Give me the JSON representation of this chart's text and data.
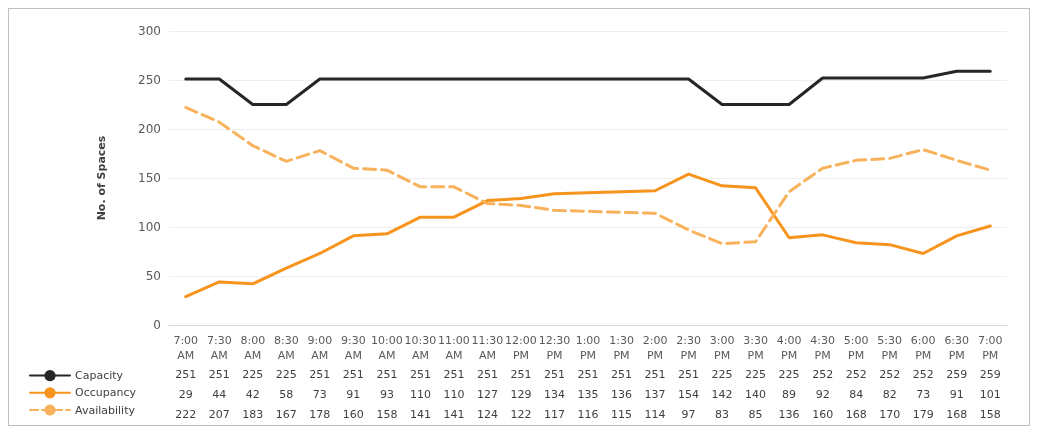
{
  "chart_data": {
    "type": "line",
    "ylabel": "No. of Spaces",
    "categories": [
      "7:00 AM",
      "7:30 AM",
      "8:00 AM",
      "8:30 AM",
      "9:00 AM",
      "9:30 AM",
      "10:00 AM",
      "10:30 AM",
      "11:00 AM",
      "11:30 AM",
      "12:00 PM",
      "12:30 PM",
      "1:00 PM",
      "1:30 PM",
      "2:00 PM",
      "2:30 PM",
      "3:00 PM",
      "3:30 PM",
      "4:00 PM",
      "4:30 PM",
      "5:00 PM",
      "5:30 PM",
      "6:00 PM",
      "6:30 PM",
      "7:00 PM"
    ],
    "series": [
      {
        "name": "Capacity",
        "color": "#262626",
        "line_style": "solid",
        "values": [
          251,
          251,
          225,
          225,
          251,
          251,
          251,
          251,
          251,
          251,
          251,
          251,
          251,
          251,
          251,
          251,
          225,
          225,
          225,
          252,
          252,
          252,
          252,
          259,
          259
        ]
      },
      {
        "name": "Occupancy",
        "color": "#f7941d",
        "line_style": "solid",
        "values": [
          29,
          44,
          42,
          58,
          73,
          91,
          93,
          110,
          110,
          127,
          129,
          134,
          135,
          136,
          137,
          154,
          142,
          140,
          89,
          92,
          84,
          82,
          73,
          91,
          101
        ]
      },
      {
        "name": "Availability",
        "color": "#f9b25c",
        "line_style": "dashed",
        "values": [
          222,
          207,
          183,
          167,
          178,
          160,
          158,
          141,
          141,
          124,
          122,
          117,
          116,
          115,
          114,
          97,
          83,
          85,
          136,
          160,
          168,
          170,
          179,
          168,
          158
        ]
      }
    ],
    "ylim": [
      0,
      300
    ],
    "yticks": [
      0,
      50,
      100,
      150,
      200,
      250,
      300
    ],
    "grid": "y",
    "marker": "none",
    "legend": "bottom left",
    "data_labels": true
  }
}
